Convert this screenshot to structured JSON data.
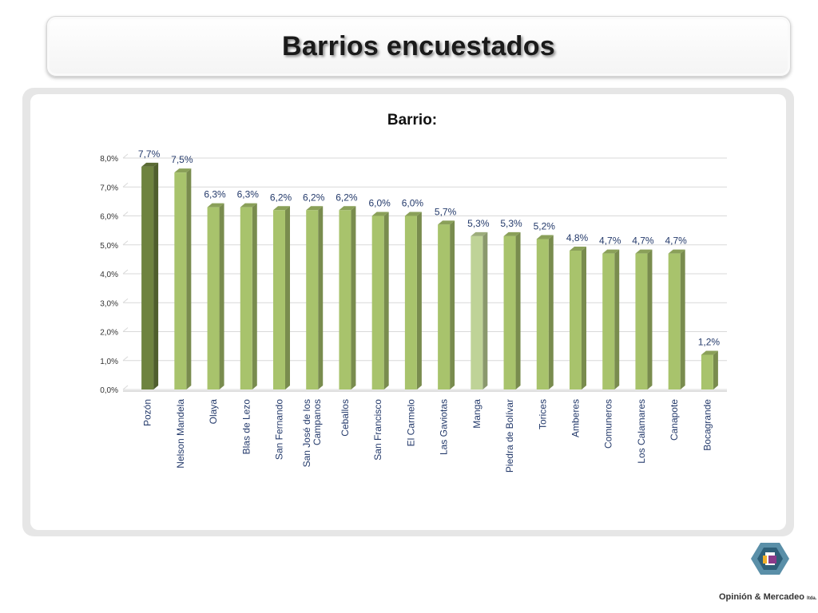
{
  "header": {
    "title": "Barrios encuestados"
  },
  "logo": {
    "name": "Opinión & Mercadeo",
    "suffix": "ltda."
  },
  "colors": {
    "bar": "#a8c36c",
    "bar_dark": "#7a9148",
    "highlight": "#6e833f",
    "light": "#bfd397"
  },
  "chart_data": {
    "type": "bar",
    "title": "Barrio:",
    "xlabel": "",
    "ylabel": "",
    "ylim": [
      0,
      8
    ],
    "yticks": [
      "0,0%",
      "1,0%",
      "2,0%",
      "3,0%",
      "4,0%",
      "5,0%",
      "6,0%",
      "7,0%",
      "8,0%"
    ],
    "grid": true,
    "categories": [
      "Pozón",
      "Nelson Mandela",
      "Olaya",
      "Blas de Lezo",
      "San Fernando",
      "San José de los Campanos",
      "Ceballos",
      "San Francisco",
      "El Carmelo",
      "Las Gaviotas",
      "Manga",
      "Piedra de Bolívar",
      "Torices",
      "Amberes",
      "Comuneros",
      "Los Calamares",
      "Canapote",
      "Bocagrande"
    ],
    "category_lines": [
      [
        "Pozón"
      ],
      [
        "Nelson Mandela"
      ],
      [
        "Olaya"
      ],
      [
        "Blas de Lezo"
      ],
      [
        "San Fernando"
      ],
      [
        "San José de los",
        "Campanos"
      ],
      [
        "Ceballos"
      ],
      [
        "San Francisco"
      ],
      [
        "El Carmelo"
      ],
      [
        "Las Gaviotas"
      ],
      [
        "Manga"
      ],
      [
        "Piedra de Bolívar"
      ],
      [
        "Torices"
      ],
      [
        "Amberes"
      ],
      [
        "Comuneros"
      ],
      [
        "Los Calamares"
      ],
      [
        "Canapote"
      ],
      [
        "Bocagrande"
      ]
    ],
    "values": [
      7.7,
      7.5,
      6.3,
      6.3,
      6.2,
      6.2,
      6.2,
      6.0,
      6.0,
      5.7,
      5.3,
      5.3,
      5.2,
      4.8,
      4.7,
      4.7,
      4.7,
      1.2
    ],
    "labels": [
      "7,7%",
      "7,5%",
      "6,3%",
      "6,3%",
      "6,2%",
      "6,2%",
      "6,2%",
      "6,0%",
      "6,0%",
      "5,7%",
      "5,3%",
      "5,3%",
      "5,2%",
      "4,8%",
      "4,7%",
      "4,7%",
      "4,7%",
      "1,2%"
    ],
    "highlight_dark_index": 0,
    "highlight_light_index": 10
  }
}
